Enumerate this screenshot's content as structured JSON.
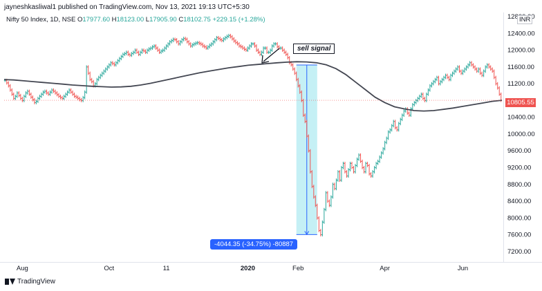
{
  "header": {
    "published_by": "jayneshkasliwal1 published on TradingView.com, Nov 13, 2021 19:13 UTC+5:30"
  },
  "symbol": {
    "name": "Nifty 50 Index, 1D, NSE",
    "open_label": "O",
    "open": "17977.60",
    "high_label": "H",
    "high": "18123.00",
    "low_label": "L",
    "low": "17905.90",
    "close_label": "C",
    "close": "18102.75",
    "change": "+229.15 (+1.28%)"
  },
  "currency_tag": "INR",
  "last_price_tag": "10805.55",
  "annotation": "sell signal",
  "measurement": "-4044.35 (-34.75%) -80887",
  "logo_text": "TradingView",
  "colors": {
    "up": "#26a69a",
    "down": "#ef5350",
    "ma": "#434651",
    "measure_fill": "#b2ebf2",
    "measure_line": "#2962ff"
  },
  "chart_data": {
    "type": "line",
    "title": "",
    "xlabel": "",
    "ylabel": "",
    "y_ticks": [
      "12800.00",
      "12400.00",
      "12000.00",
      "11600.00",
      "11200.00",
      "10800.00",
      "10400.00",
      "10000.00",
      "9600.00",
      "9200.00",
      "8800.00",
      "8400.00",
      "8000.00",
      "7600.00",
      "7200.00"
    ],
    "ylim": [
      6950,
      12900
    ],
    "x_ticks": [
      "Aug",
      "Oct",
      "11",
      "2020",
      "Feb",
      "Apr",
      "Jun",
      "Aug"
    ],
    "x_tick_index": [
      10,
      60,
      93,
      140,
      169,
      219,
      264,
      318
    ],
    "bold_x_ticks": [
      "2020"
    ],
    "grid": false,
    "series": [
      {
        "kind": "ohlc_bar",
        "values_close": [
          11280,
          11220,
          11150,
          11050,
          10950,
          10850,
          10900,
          10980,
          10920,
          10850,
          10800,
          10900,
          10980,
          11020,
          10950,
          10880,
          10820,
          10750,
          10780,
          10850,
          10900,
          10950,
          11000,
          11020,
          10980,
          10950,
          11000,
          11050,
          11020,
          10980,
          10940,
          10900,
          10870,
          10850,
          10900,
          10950,
          11000,
          11050,
          11000,
          10950,
          10900,
          10880,
          10850,
          10820,
          10800,
          10870,
          11000,
          11600,
          11450,
          11300,
          11250,
          11150,
          11200,
          11300,
          11350,
          11400,
          11450,
          11500,
          11550,
          11600,
          11650,
          11700,
          11680,
          11650,
          11700,
          11750,
          11800,
          11850,
          11900,
          11920,
          11950,
          11900,
          11880,
          11920,
          11950,
          12000,
          11950,
          11900,
          11950,
          12000,
          11980,
          11950,
          12000,
          12030,
          12050,
          12080,
          12100,
          12050,
          12000,
          11950,
          11980,
          12000,
          12050,
          12100,
          12150,
          12200,
          12230,
          12260,
          12250,
          12200,
          12150,
          12200,
          12250,
          12280,
          12260,
          12200,
          12150,
          12100,
          12130,
          12150,
          12170,
          12180,
          12160,
          12140,
          12100,
          12080,
          12050,
          12080,
          12120,
          12150,
          12200,
          12250,
          12300,
          12280,
          12250,
          12230,
          12270,
          12300,
          12330,
          12350,
          12320,
          12270,
          12220,
          12180,
          12150,
          12100,
          12080,
          12050,
          12020,
          12000,
          12050,
          12100,
          12150,
          12150,
          12100,
          12000,
          11950,
          11900,
          11950,
          12050,
          12050,
          11950,
          11950,
          12000,
          12100,
          12150,
          12150,
          12080,
          12050,
          12050,
          12000,
          11950,
          11900,
          11820,
          11700,
          11650,
          11550,
          11450,
          11300,
          11150,
          11000,
          10800,
          10450,
          10300,
          9950,
          9600,
          9100,
          8750,
          8500,
          8300,
          8000,
          7700,
          7600,
          7900,
          8200,
          8600,
          8400,
          8300,
          8500,
          8800,
          8700,
          8900,
          9100,
          8900,
          9200,
          9300,
          9100,
          9000,
          9150,
          9300,
          9200,
          9100,
          9250,
          9400,
          9500,
          9350,
          9200,
          9100,
          9300,
          9250,
          9050,
          9000,
          9100,
          9200,
          9300,
          9350,
          9450,
          9550,
          9650,
          9800,
          9900,
          10050,
          10100,
          10200,
          10300,
          10150,
          10100,
          10250,
          10350,
          10450,
          10550,
          10600,
          10500,
          10450,
          10600,
          10700,
          10750,
          10800,
          10850,
          10900,
          10950,
          10850,
          10800,
          10950,
          11050,
          11150,
          11200,
          11250,
          11300,
          11350,
          11200,
          11250,
          11300,
          11350,
          11400,
          11350,
          11300,
          11400,
          11450,
          11500,
          11550,
          11600,
          11500,
          11450,
          11500,
          11550,
          11600,
          11650,
          11700,
          11650,
          11600,
          11550,
          11500,
          11550,
          11450,
          11400,
          11500,
          11600,
          11650,
          11600,
          11550,
          11500,
          11350,
          11200,
          11100,
          10950,
          10805
        ]
      },
      {
        "kind": "moving_average",
        "values": [
          11300,
          11290,
          11270,
          11250,
          11230,
          11210,
          11190,
          11170,
          11155,
          11140,
          11130,
          11120,
          11125,
          11140,
          11170,
          11210,
          11260,
          11310,
          11360,
          11410,
          11460,
          11500,
          11540,
          11580,
          11610,
          11640,
          11660,
          11680,
          11700,
          11715,
          11725,
          11720,
          11700,
          11650,
          11560,
          11420,
          11240,
          11060,
          10880,
          10750,
          10650,
          10600,
          10560,
          10550,
          10560,
          10590,
          10620,
          10660,
          10700,
          10740,
          10780,
          10805
        ]
      }
    ],
    "measure": {
      "from": 11648,
      "to": 7604,
      "change": -4044.35,
      "percent": -34.75
    }
  }
}
